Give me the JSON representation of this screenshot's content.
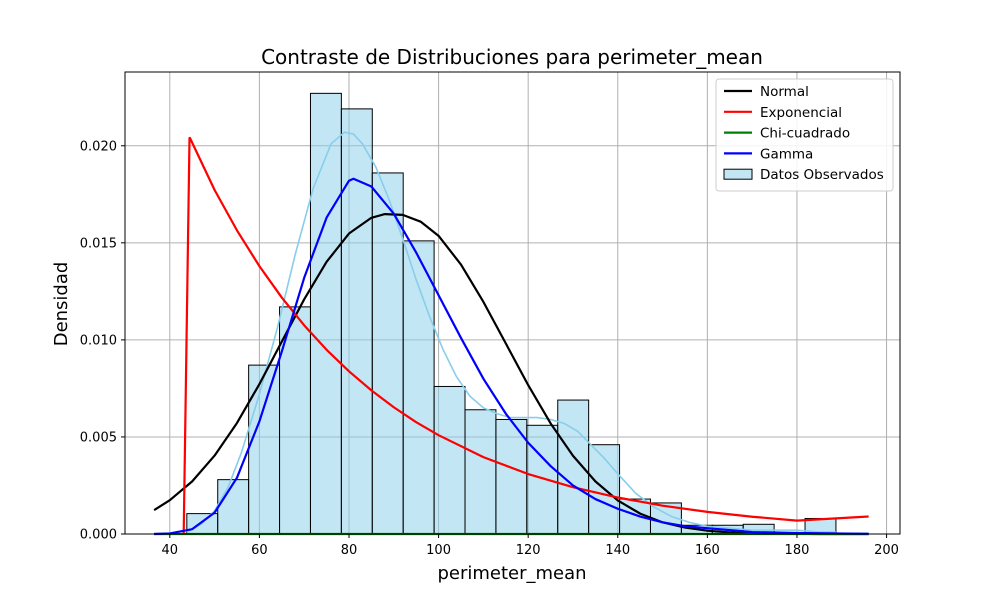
{
  "chart_data": {
    "type": "histogram",
    "title": "Contraste de Distribuciones para perimeter_mean",
    "xlabel": "perimeter_mean",
    "ylabel": "Densidad",
    "xlim": [
      30,
      203
    ],
    "ylim": [
      0,
      0.0238
    ],
    "xticks": [
      40,
      60,
      80,
      100,
      120,
      140,
      160,
      180,
      200
    ],
    "xtick_labels": [
      "40",
      "60",
      "80",
      "100",
      "120",
      "140",
      "160",
      "180",
      "200"
    ],
    "yticks": [
      0,
      0.005,
      0.01,
      0.015,
      0.02
    ],
    "ytick_labels": [
      "0.000",
      "0.005",
      "0.010",
      "0.015",
      "0.020"
    ],
    "grid": true,
    "legend_position": "top-right",
    "histogram": {
      "name": "Datos Observados",
      "color": "#87CEEB",
      "edgecolor": "#000000",
      "bin_edges": [
        43.8,
        50.7,
        57.6,
        64.5,
        71.4,
        78.3,
        85.2,
        92.1,
        99.0,
        105.9,
        112.8,
        119.7,
        126.6,
        133.5,
        140.4,
        147.3,
        154.2,
        161.1,
        168.0,
        174.9,
        181.8,
        188.7
      ],
      "densities": [
        0.00105,
        0.0028,
        0.0087,
        0.0117,
        0.0227,
        0.0219,
        0.0186,
        0.0151,
        0.0076,
        0.0064,
        0.0059,
        0.0056,
        0.0069,
        0.0046,
        0.0018,
        0.0016,
        0.00045,
        0.00045,
        0.0005,
        0.0,
        0.0008
      ]
    },
    "kde": {
      "color": "#87CEEB",
      "x": [
        43.8,
        47,
        50,
        53,
        56,
        60,
        64,
        68,
        72,
        76,
        79,
        81,
        83,
        86,
        89,
        92,
        95,
        98,
        101,
        104,
        107,
        110,
        113,
        116,
        119,
        122,
        125,
        128,
        131,
        134,
        137,
        140,
        144,
        148,
        152,
        156,
        160,
        165,
        170,
        175,
        180,
        185,
        188.7
      ],
      "y": [
        0.0001,
        0.0005,
        0.0012,
        0.0024,
        0.0042,
        0.0072,
        0.0106,
        0.0144,
        0.0178,
        0.0201,
        0.0207,
        0.0206,
        0.0201,
        0.0189,
        0.0172,
        0.0152,
        0.0131,
        0.0112,
        0.0095,
        0.0081,
        0.0071,
        0.0065,
        0.0062,
        0.006,
        0.006,
        0.006,
        0.0059,
        0.0057,
        0.0053,
        0.0046,
        0.0039,
        0.0031,
        0.0021,
        0.0014,
        0.0009,
        0.0006,
        0.0004,
        0.0003,
        0.0002,
        0.0002,
        0.0002,
        0.0001,
        0.0001
      ]
    },
    "series": [
      {
        "name": "Normal",
        "color": "#000000",
        "x": [
          36.5,
          40,
          45,
          50,
          55,
          60,
          65,
          70,
          75,
          80,
          85,
          88,
          92,
          96,
          100,
          105,
          110,
          115,
          120,
          125,
          130,
          135,
          140,
          145,
          150,
          155,
          160,
          165,
          170,
          175,
          180,
          185,
          190,
          196
        ],
        "y": [
          0.00123,
          0.00174,
          0.00271,
          0.00404,
          0.00572,
          0.00772,
          0.00991,
          0.01209,
          0.01402,
          0.01548,
          0.01629,
          0.01648,
          0.01644,
          0.01609,
          0.01536,
          0.01388,
          0.01196,
          0.00982,
          0.00767,
          0.0057,
          0.00403,
          0.00271,
          0.00173,
          0.00105,
          0.0006,
          0.00033,
          0.00017,
          8e-05,
          4e-05,
          2e-05,
          1e-05,
          0.0,
          0.0,
          0.0
        ]
      },
      {
        "name": "Exponencial",
        "color": "#FF0000",
        "x": [
          43.1,
          44.4,
          44.5,
          50,
          55,
          60,
          65,
          70,
          75,
          80,
          85,
          90,
          95,
          100,
          110,
          120,
          130,
          140,
          150,
          160,
          170,
          180,
          196
        ],
        "y": [
          0.0,
          0.0204,
          0.0204,
          0.01772,
          0.01564,
          0.0138,
          0.01218,
          0.01075,
          0.00949,
          0.00838,
          0.0074,
          0.00653,
          0.00576,
          0.00509,
          0.00396,
          0.00309,
          0.00241,
          0.00188,
          0.00146,
          0.00114,
          0.00089,
          0.00069,
          0.0009
        ]
      },
      {
        "name": "Chi-cuadrado",
        "color": "#008000",
        "x": [
          36.5,
          196
        ],
        "y": [
          0.0,
          0.0
        ]
      },
      {
        "name": "Gamma",
        "color": "#0000FF",
        "x": [
          36.5,
          40,
          45,
          50,
          55,
          60,
          65,
          70,
          75,
          80,
          81,
          85,
          90,
          95,
          100,
          105,
          110,
          115,
          120,
          125,
          130,
          135,
          140,
          145,
          150,
          155,
          160,
          165,
          170,
          180,
          196
        ],
        "y": [
          0.0,
          3e-05,
          0.00025,
          0.0011,
          0.0029,
          0.0058,
          0.0094,
          0.0132,
          0.0163,
          0.0182,
          0.0183,
          0.0179,
          0.0165,
          0.0145,
          0.0123,
          0.0101,
          0.008,
          0.0062,
          0.0047,
          0.0035,
          0.0025,
          0.0018,
          0.0013,
          0.0009,
          0.0006,
          0.0004,
          0.0003,
          0.0002,
          0.0001,
          5e-05,
          1e-05
        ]
      }
    ]
  }
}
